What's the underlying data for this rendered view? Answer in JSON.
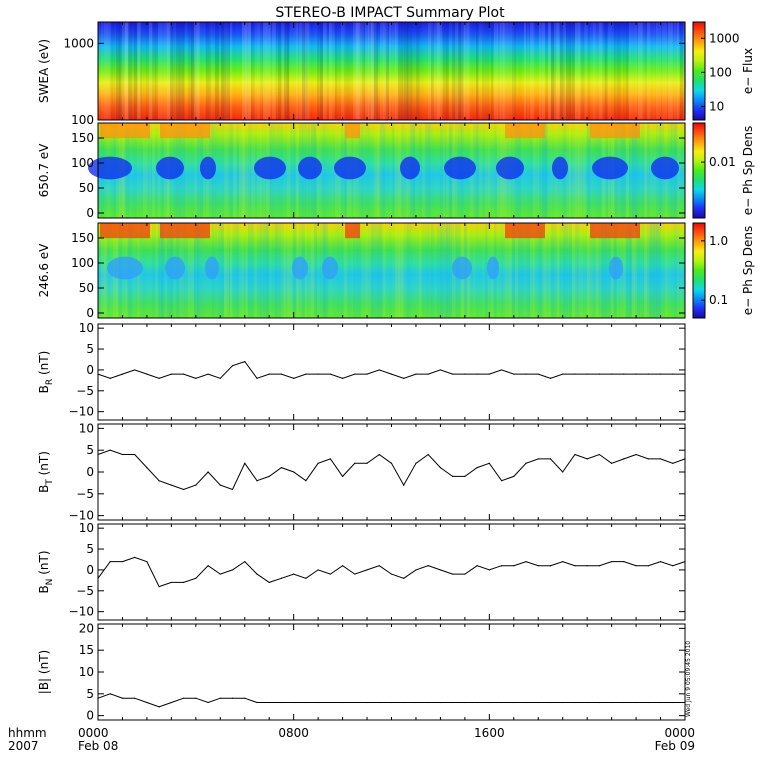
{
  "title": "STEREO-B IMPACT Summary Plot",
  "stamp": "Wed Jun  9 05:09:45 2010",
  "time_axis": {
    "row1_label": "hhmm",
    "row2_label": "2007",
    "ticks": [
      {
        "hour": 0,
        "time": "0000",
        "date": "Feb 08"
      },
      {
        "hour": 8,
        "time": "0800",
        "date": ""
      },
      {
        "hour": 16,
        "time": "1600",
        "date": ""
      },
      {
        "hour": 24,
        "time": "0000",
        "date": "Feb 09"
      }
    ],
    "range_hours": [
      0,
      24
    ]
  },
  "chart_data": [
    {
      "type": "heatmap",
      "ylabel": "SWEA (eV)",
      "yscale": "log",
      "ylim": [
        100,
        1900
      ],
      "yticks": [
        {
          "v": 100,
          "t": "100"
        },
        {
          "v": 1000,
          "t": "1000"
        }
      ],
      "colorbar": {
        "label": "e− Flux",
        "scale": "log",
        "range": [
          4,
          3000
        ],
        "ticks": [
          {
            "v": 10,
            "t": "10"
          },
          {
            "v": 100,
            "t": "100"
          },
          {
            "v": 1000,
            "t": "1000"
          }
        ]
      },
      "description_rows_low_to_high_energy": [
        "red",
        "orange",
        "yellow",
        "green",
        "cyan",
        "blue"
      ]
    },
    {
      "type": "heatmap",
      "ylabel": "650.7 eV",
      "ylim": [
        -10,
        180
      ],
      "yticks": [
        {
          "v": 0,
          "t": "0"
        },
        {
          "v": 50,
          "t": "50"
        },
        {
          "v": 100,
          "t": "100"
        },
        {
          "v": 150,
          "t": "150"
        }
      ],
      "colorbar": {
        "label": "e− Ph Sp Dens",
        "scale": "log",
        "range": [
          0.001,
          0.05
        ],
        "ticks": [
          {
            "v": 0.01,
            "t": "0.01"
          }
        ]
      }
    },
    {
      "type": "heatmap",
      "ylabel": "246.6 eV",
      "ylim": [
        -10,
        180
      ],
      "yticks": [
        {
          "v": 0,
          "t": "0"
        },
        {
          "v": 50,
          "t": "50"
        },
        {
          "v": 100,
          "t": "100"
        },
        {
          "v": 150,
          "t": "150"
        }
      ],
      "colorbar": {
        "label": "e− Ph Sp Dens",
        "scale": "log",
        "range": [
          0.05,
          2.0
        ],
        "ticks": [
          {
            "v": 0.1,
            "t": "0.1"
          },
          {
            "v": 1.0,
            "t": "1.0"
          }
        ]
      }
    },
    {
      "type": "line",
      "ylabel_main": "B",
      "ylabel_sub": "R",
      "ylabel_unit": "(nT)",
      "ylim": [
        -12,
        11
      ],
      "yticks": [
        {
          "v": -10,
          "t": "−10"
        },
        {
          "v": -5,
          "t": "−5"
        },
        {
          "v": 0,
          "t": "0"
        },
        {
          "v": 5,
          "t": "5"
        },
        {
          "v": 10,
          "t": "10"
        }
      ],
      "x": [
        0,
        0.5,
        1,
        1.5,
        2,
        2.5,
        3,
        3.5,
        4,
        4.5,
        5,
        5.5,
        6,
        6.5,
        7,
        7.5,
        8,
        8.5,
        9,
        9.5,
        10,
        10.5,
        11,
        11.5,
        12,
        12.5,
        13,
        13.5,
        14,
        14.5,
        15,
        15.5,
        16,
        16.5,
        17,
        17.5,
        18,
        18.5,
        19,
        19.5,
        20,
        20.5,
        21,
        21.5,
        22,
        22.5,
        23,
        23.5,
        24
      ],
      "values": [
        -1,
        -2,
        -1,
        0,
        -1,
        -2,
        -1,
        -1,
        -2,
        -1,
        -2,
        1,
        2,
        -2,
        -1,
        -1,
        -2,
        -1,
        -1,
        -1,
        -2,
        -1,
        -1,
        0,
        -1,
        -2,
        -1,
        -1,
        0,
        -1,
        -1,
        -1,
        -1,
        0,
        -1,
        -1,
        -1,
        -2,
        -1,
        -1,
        -1,
        -1,
        -1,
        -1,
        -1,
        -1,
        -1,
        -1,
        -1
      ]
    },
    {
      "type": "line",
      "ylabel_main": "B",
      "ylabel_sub": "T",
      "ylabel_unit": "(nT)",
      "ylim": [
        -11,
        11
      ],
      "yticks": [
        {
          "v": -10,
          "t": "−10"
        },
        {
          "v": -5,
          "t": "−5"
        },
        {
          "v": 0,
          "t": "0"
        },
        {
          "v": 5,
          "t": "5"
        },
        {
          "v": 10,
          "t": "10"
        }
      ],
      "x": [
        0,
        0.5,
        1,
        1.5,
        2,
        2.5,
        3,
        3.5,
        4,
        4.5,
        5,
        5.5,
        6,
        6.5,
        7,
        7.5,
        8,
        8.5,
        9,
        9.5,
        10,
        10.5,
        11,
        11.5,
        12,
        12.5,
        13,
        13.5,
        14,
        14.5,
        15,
        15.5,
        16,
        16.5,
        17,
        17.5,
        18,
        18.5,
        19,
        19.5,
        20,
        20.5,
        21,
        21.5,
        22,
        22.5,
        23,
        23.5,
        24
      ],
      "values": [
        4,
        5,
        4,
        4,
        1,
        -2,
        -3,
        -4,
        -3,
        0,
        -3,
        -4,
        2,
        -2,
        -1,
        1,
        0,
        -2,
        2,
        3,
        -1,
        2,
        2,
        4,
        2,
        -3,
        2,
        4,
        1,
        -1,
        -1,
        1,
        2,
        -2,
        -1,
        2,
        3,
        3,
        0,
        4,
        3,
        4,
        2,
        3,
        4,
        3,
        3,
        2,
        3
      ]
    },
    {
      "type": "line",
      "ylabel_main": "B",
      "ylabel_sub": "N",
      "ylabel_unit": "(nT)",
      "ylim": [
        -12,
        11
      ],
      "yticks": [
        {
          "v": -10,
          "t": "−10"
        },
        {
          "v": -5,
          "t": "−5"
        },
        {
          "v": 0,
          "t": "0"
        },
        {
          "v": 5,
          "t": "5"
        },
        {
          "v": 10,
          "t": "10"
        }
      ],
      "x": [
        0,
        0.5,
        1,
        1.5,
        2,
        2.5,
        3,
        3.5,
        4,
        4.5,
        5,
        5.5,
        6,
        6.5,
        7,
        7.5,
        8,
        8.5,
        9,
        9.5,
        10,
        10.5,
        11,
        11.5,
        12,
        12.5,
        13,
        13.5,
        14,
        14.5,
        15,
        15.5,
        16,
        16.5,
        17,
        17.5,
        18,
        18.5,
        19,
        19.5,
        20,
        20.5,
        21,
        21.5,
        22,
        22.5,
        23,
        23.5,
        24
      ],
      "values": [
        -2,
        2,
        2,
        3,
        2,
        -4,
        -3,
        -3,
        -2,
        1,
        -1,
        0,
        2,
        -1,
        -3,
        -2,
        -1,
        -2,
        0,
        -1,
        1,
        -1,
        0,
        1,
        -1,
        -2,
        0,
        1,
        0,
        -1,
        -1,
        1,
        0,
        1,
        1,
        2,
        1,
        1,
        2,
        1,
        1,
        1,
        2,
        2,
        1,
        1,
        2,
        1,
        2
      ]
    },
    {
      "type": "line",
      "ylabel": "|B| (nT)",
      "ylim": [
        -1,
        21
      ],
      "yticks": [
        {
          "v": 0,
          "t": "0"
        },
        {
          "v": 5,
          "t": "5"
        },
        {
          "v": 10,
          "t": "10"
        },
        {
          "v": 15,
          "t": "15"
        },
        {
          "v": 20,
          "t": "20"
        }
      ],
      "x": [
        0,
        0.5,
        1,
        1.5,
        2,
        2.5,
        3,
        3.5,
        4,
        4.5,
        5,
        5.5,
        6,
        6.5,
        7,
        7.5,
        8,
        8.5,
        9,
        9.5,
        10,
        10.5,
        11,
        11.5,
        12,
        12.5,
        13,
        13.5,
        14,
        14.5,
        15,
        15.5,
        16,
        16.5,
        17,
        17.5,
        18,
        18.5,
        19,
        19.5,
        20,
        20.5,
        21,
        21.5,
        22,
        22.5,
        23,
        23.5,
        24
      ],
      "values": [
        4,
        5,
        4,
        4,
        3,
        2,
        3,
        4,
        4,
        3,
        4,
        4,
        4,
        3,
        3,
        3,
        3,
        3,
        3,
        3,
        3,
        3,
        3,
        3,
        3,
        3,
        3,
        3,
        3,
        3,
        3,
        3,
        3,
        3,
        3,
        3,
        3,
        3,
        3,
        3,
        3,
        3,
        3,
        3,
        3,
        3,
        3,
        3,
        3
      ]
    }
  ]
}
